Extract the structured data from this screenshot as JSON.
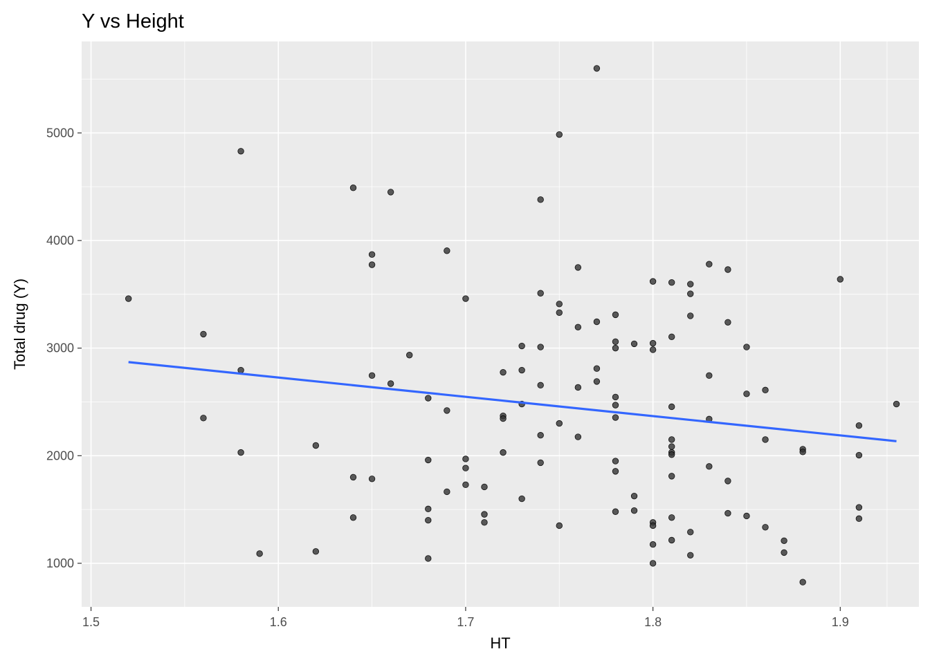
{
  "chart_data": {
    "type": "scatter",
    "title": "Y vs Height",
    "xlabel": "HT",
    "ylabel": "Total drug (Y)",
    "xlim": [
      1.495,
      1.942
    ],
    "ylim": [
      595,
      5850
    ],
    "x_ticks": [
      1.5,
      1.6,
      1.7,
      1.8,
      1.9
    ],
    "x_tick_labels": [
      "1.5",
      "1.6",
      "1.7",
      "1.8",
      "1.9"
    ],
    "y_ticks": [
      1000,
      2000,
      3000,
      4000,
      5000
    ],
    "y_tick_labels": [
      "1000",
      "2000",
      "3000",
      "4000",
      "5000"
    ],
    "grid": true,
    "legend": "none",
    "colors": {
      "panel": "#ebebeb",
      "grid": "#ffffff",
      "point_fill": "#333333",
      "point_opacity": 0.8,
      "fit_line": "#3366ff"
    },
    "fit_line": {
      "x": [
        1.52,
        1.93
      ],
      "y": [
        2870,
        2135
      ]
    },
    "points": {
      "x": [
        1.52,
        1.56,
        1.56,
        1.58,
        1.58,
        1.58,
        1.59,
        1.62,
        1.62,
        1.64,
        1.64,
        1.64,
        1.65,
        1.65,
        1.65,
        1.65,
        1.66,
        1.66,
        1.67,
        1.68,
        1.68,
        1.68,
        1.68,
        1.68,
        1.69,
        1.69,
        1.69,
        1.7,
        1.7,
        1.7,
        1.7,
        1.71,
        1.71,
        1.71,
        1.72,
        1.72,
        1.72,
        1.72,
        1.73,
        1.73,
        1.73,
        1.73,
        1.74,
        1.74,
        1.74,
        1.74,
        1.74,
        1.74,
        1.75,
        1.75,
        1.75,
        1.75,
        1.75,
        1.76,
        1.76,
        1.76,
        1.76,
        1.77,
        1.77,
        1.77,
        1.77,
        1.78,
        1.78,
        1.78,
        1.78,
        1.78,
        1.78,
        1.78,
        1.78,
        1.78,
        1.79,
        1.79,
        1.79,
        1.8,
        1.8,
        1.8,
        1.8,
        1.8,
        1.8,
        1.8,
        1.81,
        1.81,
        1.81,
        1.81,
        1.81,
        1.81,
        1.81,
        1.81,
        1.81,
        1.81,
        1.82,
        1.82,
        1.82,
        1.82,
        1.82,
        1.83,
        1.83,
        1.83,
        1.83,
        1.84,
        1.84,
        1.84,
        1.84,
        1.85,
        1.85,
        1.85,
        1.86,
        1.86,
        1.86,
        1.87,
        1.87,
        1.88,
        1.88,
        1.88,
        1.9,
        1.91,
        1.91,
        1.91,
        1.91,
        1.93
      ],
      "y": [
        3460,
        3130,
        2350,
        4830,
        2795,
        2030,
        1090,
        2095,
        1110,
        4490,
        1800,
        1425,
        3870,
        3775,
        2745,
        1785,
        4450,
        2670,
        2935,
        2535,
        1960,
        1505,
        1400,
        1045,
        3905,
        2420,
        1665,
        3460,
        1970,
        1885,
        1730,
        1710,
        1455,
        1380,
        2775,
        2370,
        2345,
        2030,
        3020,
        2795,
        2480,
        1600,
        4380,
        3510,
        3010,
        2655,
        2190,
        1935,
        4985,
        3410,
        3330,
        2300,
        1350,
        3750,
        3195,
        2635,
        2175,
        5600,
        3245,
        2810,
        2690,
        3310,
        3060,
        3000,
        2545,
        2470,
        2355,
        1950,
        1855,
        1480,
        3040,
        1625,
        1490,
        3620,
        3045,
        2985,
        1380,
        1350,
        1175,
        1000,
        3610,
        3105,
        2455,
        2150,
        2085,
        2030,
        2010,
        1810,
        1425,
        1215,
        3595,
        3505,
        3300,
        1290,
        1075,
        3780,
        2745,
        2340,
        1900,
        3730,
        3240,
        1765,
        1465,
        3010,
        2575,
        1440,
        2610,
        2150,
        1335,
        1210,
        1100,
        2060,
        2035,
        825,
        3640,
        2280,
        2005,
        1520,
        1415,
        2480
      ]
    }
  }
}
